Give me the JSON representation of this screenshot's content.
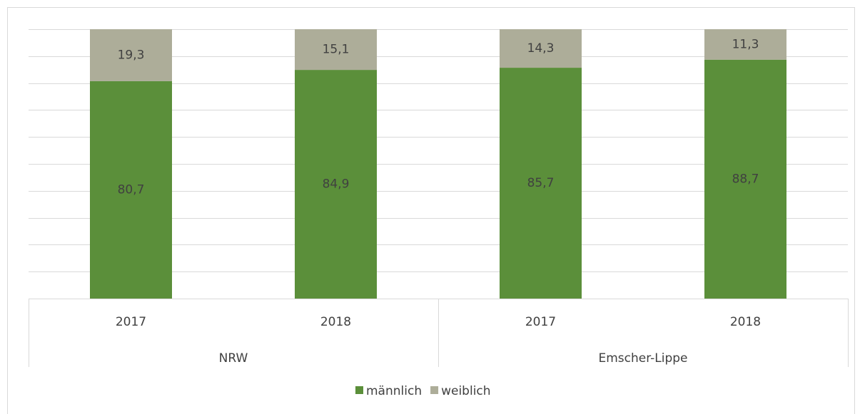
{
  "chart_data": {
    "type": "stacked_bar",
    "categories": [
      "2017",
      "2018",
      "2017",
      "2018"
    ],
    "groups": [
      "NRW",
      "Emscher-Lippe"
    ],
    "series": [
      {
        "name": "männlich",
        "color": "#5b8f3a",
        "values": [
          80.7,
          84.9,
          85.7,
          88.7
        ],
        "value_labels": [
          "80,7",
          "84,9",
          "85,7",
          "88,7"
        ]
      },
      {
        "name": "weiblich",
        "color": "#adad99",
        "values": [
          19.3,
          15.1,
          14.3,
          11.3
        ],
        "value_labels": [
          "19,3",
          "15,1",
          "14,3",
          "11,3"
        ]
      }
    ],
    "ylim": [
      0,
      100
    ],
    "yticks": [
      0,
      10,
      20,
      30,
      40,
      50,
      60,
      70,
      80,
      90,
      100
    ],
    "grid": true,
    "legend": "bottom"
  }
}
